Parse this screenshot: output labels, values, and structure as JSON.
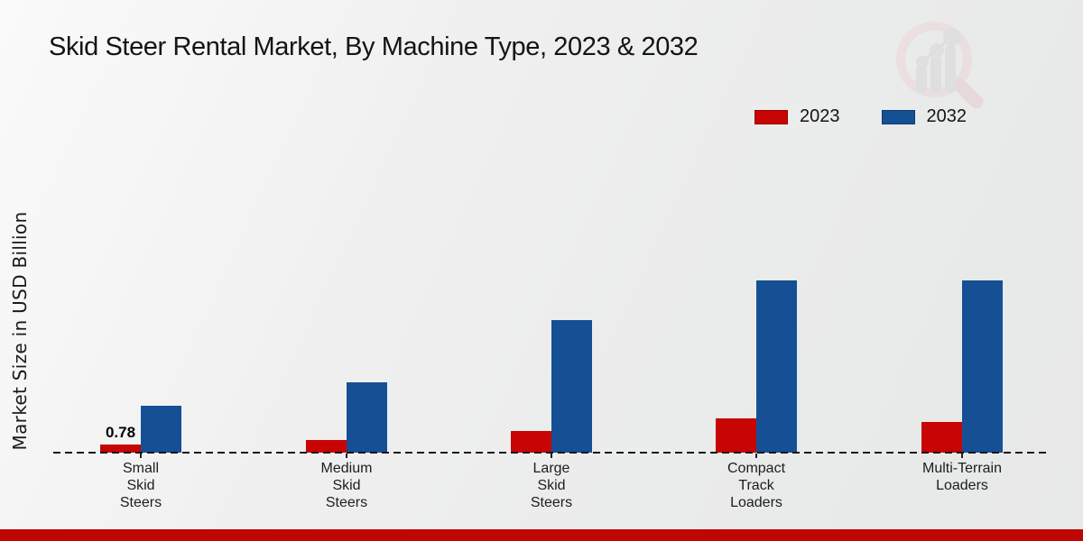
{
  "title": "Skid Steer Rental Market, By Machine Type, 2023 & 2032",
  "ylabel": "Market Size in USD Billion",
  "legend": {
    "items": [
      {
        "label": "2023",
        "color": "#c80404"
      },
      {
        "label": "2032",
        "color": "#155094"
      }
    ]
  },
  "logo": {
    "name": "magnifier-bar-chart-watermark"
  },
  "colors": {
    "series_2023": "#c80404",
    "series_2032": "#155094",
    "footer_strip": "#c00505",
    "baseline": "#151515"
  },
  "chart_data": {
    "type": "bar",
    "title": "Skid Steer Rental Market, By Machine Type, 2023 & 2032",
    "xlabel": "",
    "ylabel": "Market Size in USD Billion",
    "categories": [
      "Small Skid Steers",
      "Medium Skid Steers",
      "Large Skid Steers",
      "Compact Track Loaders",
      "Multi-Terrain Loaders"
    ],
    "category_lines": [
      [
        "Small",
        "Skid",
        "Steers"
      ],
      [
        "Medium",
        "Skid",
        "Steers"
      ],
      [
        "Large",
        "Skid",
        "Steers"
      ],
      [
        "Compact",
        "Track",
        "Loaders"
      ],
      [
        "Multi-Terrain",
        "Loaders"
      ]
    ],
    "series": [
      {
        "name": "2023",
        "color": "#c80404",
        "values": [
          0.78,
          1.2,
          2.1,
          3.3,
          2.95
        ]
      },
      {
        "name": "2032",
        "color": "#155094",
        "values": [
          4.5,
          6.8,
          12.8,
          16.6,
          16.6
        ]
      }
    ],
    "annotations": [
      {
        "category_index": 0,
        "series_index": 0,
        "text": "0.78"
      }
    ],
    "ylim": [
      0,
      18
    ],
    "grid": false,
    "axis_style": "dashed-baseline-only",
    "legend_position": "top-right"
  }
}
